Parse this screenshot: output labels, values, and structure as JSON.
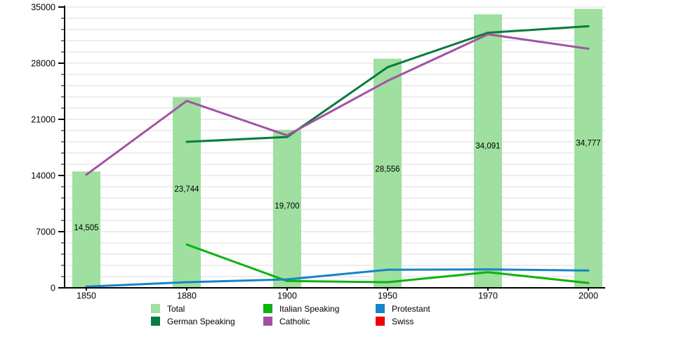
{
  "chart_data": {
    "type": "bar",
    "subtype": "bar-with-lines",
    "title": "",
    "xlabel": "",
    "ylabel": "",
    "categories": [
      "1850",
      "1880",
      "1900",
      "1950",
      "1970",
      "2000"
    ],
    "ylim": [
      0,
      35000
    ],
    "y_major_step": 7000,
    "y_minor_step": 1400,
    "y_tick_labels": [
      "0",
      "7000",
      "14000",
      "21000",
      "28000",
      "35000"
    ],
    "grid": true,
    "gridline_color": "#dbdbdb",
    "axis_color": "#000000",
    "background_color": "#ffffff",
    "legend_position": "bottom",
    "series": [
      {
        "name": "Total",
        "mark": "bar",
        "color": "#9fdf9f",
        "values": [
          14505,
          23744,
          19700,
          28556,
          34091,
          34777
        ],
        "labels": [
          "14,505",
          "23,744",
          "19,700",
          "28,556",
          "34,091",
          "34,777"
        ]
      },
      {
        "name": "German Speaking",
        "mark": "line",
        "color": "#0a7b3d",
        "values": [
          null,
          18200,
          18800,
          27500,
          31800,
          32600
        ]
      },
      {
        "name": "Italian Speaking",
        "mark": "line",
        "color": "#0db30d",
        "values": [
          null,
          5400,
          850,
          700,
          1950,
          600
        ]
      },
      {
        "name": "Catholic",
        "mark": "line",
        "color": "#a153a3",
        "values": [
          14100,
          23300,
          19000,
          25800,
          31600,
          29800
        ]
      },
      {
        "name": "Protestant",
        "mark": "line",
        "color": "#1585c7",
        "values": [
          150,
          700,
          1050,
          2250,
          2300,
          2150
        ]
      },
      {
        "name": "Swiss",
        "mark": "line",
        "color": "#ee0000",
        "values": [
          null,
          null,
          null,
          null,
          null,
          null
        ]
      }
    ],
    "legend_columns": [
      [
        "Total",
        "German Speaking"
      ],
      [
        "Italian Speaking",
        "Catholic"
      ],
      [
        "Protestant",
        "Swiss"
      ]
    ]
  }
}
